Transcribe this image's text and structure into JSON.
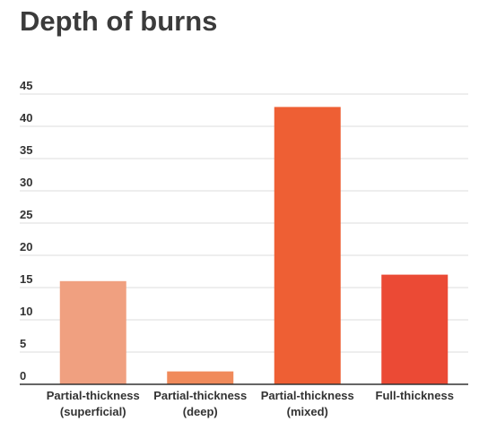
{
  "chart_data": {
    "type": "bar",
    "title": "Depth of burns",
    "xlabel": "",
    "ylabel": "",
    "categories": [
      [
        "Partial-thickness",
        "(superficial)"
      ],
      [
        "Partial-thickness",
        "(deep)"
      ],
      [
        "Partial-thickness",
        "(mixed)"
      ],
      [
        "Full-thickness"
      ]
    ],
    "values": [
      16,
      2,
      43,
      17
    ],
    "bar_colors": [
      "#f0a080",
      "#f08a5a",
      "#ee5f34",
      "#eb4a35"
    ],
    "ylim": [
      0,
      45
    ],
    "yticks": [
      0,
      5,
      10,
      15,
      20,
      25,
      30,
      35,
      40,
      45
    ],
    "grid": true,
    "legend": "none"
  }
}
